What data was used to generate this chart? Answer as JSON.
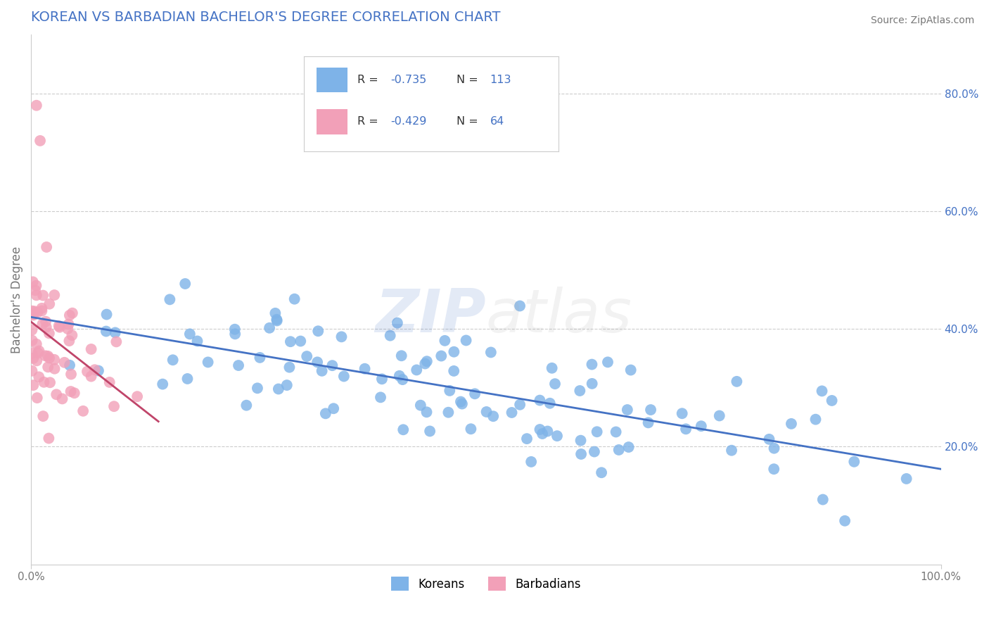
{
  "title": "KOREAN VS BARBADIAN BACHELOR'S DEGREE CORRELATION CHART",
  "source_text": "Source: ZipAtlas.com",
  "ylabel": "Bachelor's Degree",
  "xlim": [
    0.0,
    1.0
  ],
  "ylim": [
    0.0,
    0.9
  ],
  "yticks_right": [
    0.2,
    0.4,
    0.6,
    0.8
  ],
  "ytick_labels_right": [
    "20.0%",
    "40.0%",
    "60.0%",
    "80.0%"
  ],
  "korean_color": "#7eb3e8",
  "barbadian_color": "#f2a0b8",
  "korean_line_color": "#4472c4",
  "barbadian_line_color": "#c0456a",
  "legend_text_color": "#4472c4",
  "watermark_color_ZIP": "#4472c4",
  "watermark_color_atlas": "#aaaaaa",
  "title_color": "#4472c4",
  "title_fontsize": 14,
  "background_color": "#ffffff",
  "grid_color": "#cccccc",
  "korean_R": -0.735,
  "korean_N": 113,
  "barbadian_R": -0.429,
  "barbadian_N": 64,
  "korean_seed": 42,
  "barbadian_seed": 99
}
